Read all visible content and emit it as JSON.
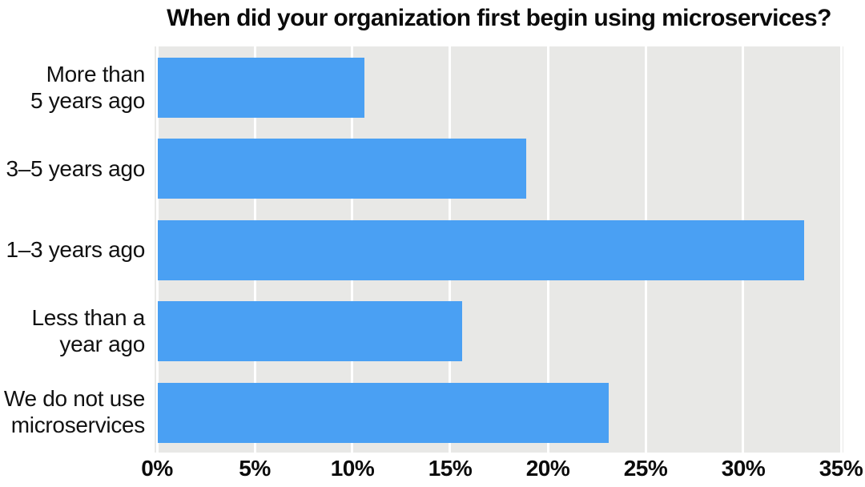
{
  "title": "When did your organization first begin using microservices?",
  "chart_data": {
    "type": "bar",
    "orientation": "horizontal",
    "title": "When did your organization first begin using microservices?",
    "categories": [
      "More than 5 years ago",
      "3–5 years ago",
      "1–3 years ago",
      "Less than a year ago",
      "We do not use microservices"
    ],
    "category_label_lines": [
      "More than\n5 years ago",
      "3–5 years ago",
      "1–3 years ago",
      "Less than a\nyear ago",
      "We do not use\nmicroservices"
    ],
    "values": [
      10.6,
      18.9,
      33.1,
      15.6,
      23.1
    ],
    "unit": "%",
    "xlabel": "",
    "ylabel": "",
    "xlim": [
      0,
      35
    ],
    "x_tick_values": [
      0,
      5,
      10,
      15,
      20,
      25,
      30,
      35
    ],
    "x_tick_labels": [
      "0%",
      "5%",
      "10%",
      "15%",
      "20%",
      "25%",
      "30%",
      "35%"
    ],
    "grid": true,
    "legend": "none",
    "bar_color": "#4aa0f3",
    "plot_background": "#e8e8e6",
    "gridline_color": "#ffffff",
    "text_color": "#111111"
  }
}
